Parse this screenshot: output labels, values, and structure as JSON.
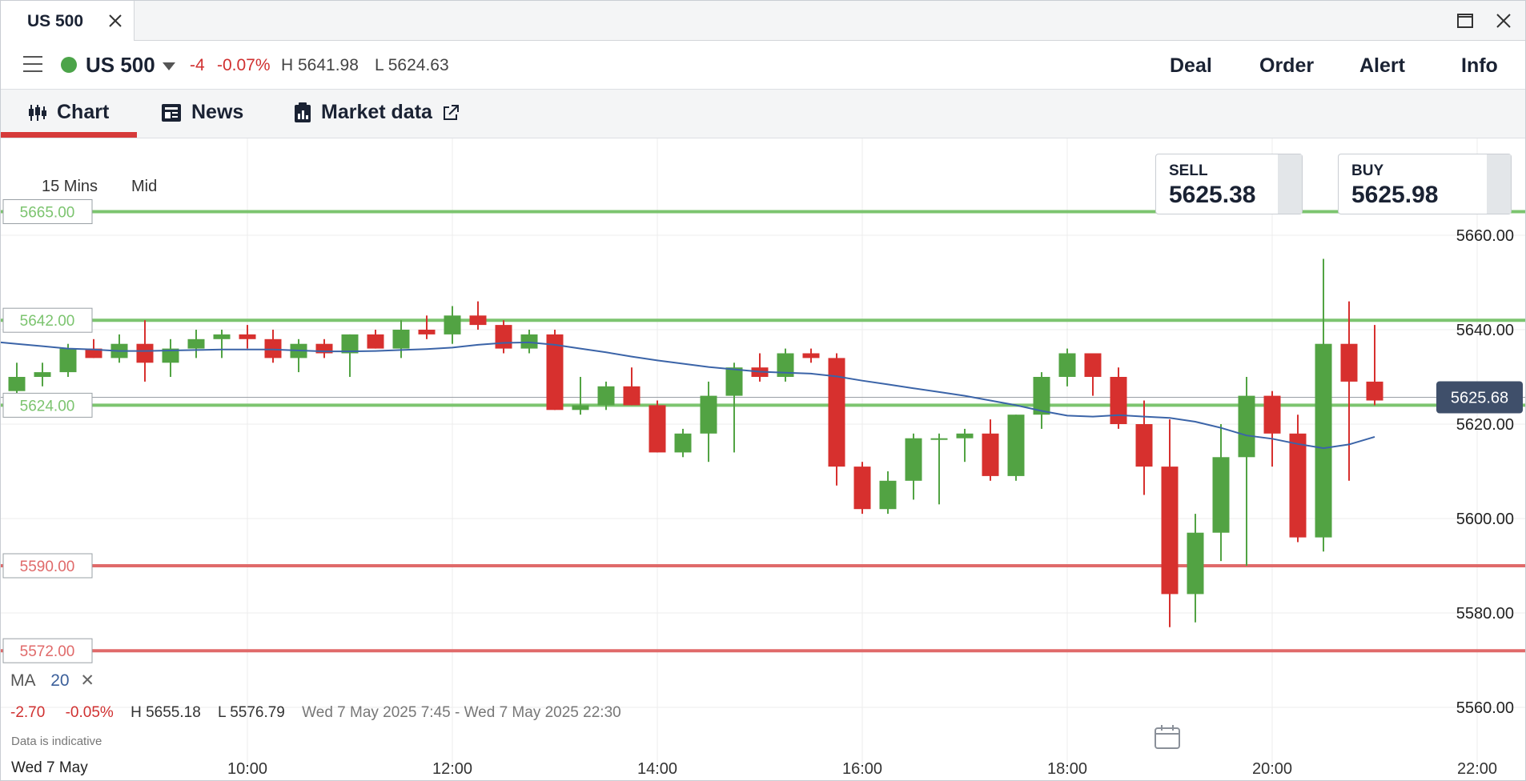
{
  "window": {
    "tab_title": "US 500"
  },
  "header": {
    "market_name": "US 500",
    "change": "-4",
    "change_pct": "-0.07%",
    "high": "H 5641.98",
    "low": "L 5624.63",
    "menu": [
      "Deal",
      "Order",
      "Alert",
      "Info"
    ]
  },
  "subtabs": {
    "chart": "Chart",
    "news": "News",
    "market_data": "Market data"
  },
  "controls": {
    "interval": "15 Mins",
    "price_type": "Mid"
  },
  "quotes": {
    "sell_label": "SELL",
    "sell_price": "5625.38",
    "buy_label": "BUY",
    "buy_price": "5625.98"
  },
  "current_price_label": "5625.68",
  "levels": [
    {
      "value": 5665,
      "label": "5665.00",
      "color": "#7cc46f"
    },
    {
      "value": 5642,
      "label": "5642.00",
      "color": "#7cc46f"
    },
    {
      "value": 5624,
      "label": "5624.00",
      "color": "#7cc46f"
    },
    {
      "value": 5590,
      "label": "5590.00",
      "color": "#e06a6a"
    },
    {
      "value": 5572,
      "label": "5572.00",
      "color": "#e06a6a"
    }
  ],
  "indicator": {
    "name": "MA",
    "period": "20"
  },
  "summary": {
    "change": "-2.70",
    "change_pct": "-0.05%",
    "high": "H 5655.18",
    "low": "L 5576.79",
    "range": "Wed 7 May 2025 7:45 - Wed 7 May 2025 22:30",
    "note": "Data is indicative",
    "date": "Wed 7 May"
  },
  "chart_data": {
    "type": "candlestick",
    "interval_minutes": 15,
    "x_start": "07:45",
    "y_ticks": [
      "5660.00",
      "5640.00",
      "5620.00",
      "5600.00",
      "5580.00",
      "5560.00"
    ],
    "x_ticks": [
      "10:00",
      "12:00",
      "14:00",
      "16:00",
      "18:00",
      "20:00",
      "22:00"
    ],
    "ylim": [
      5554,
      5674
    ],
    "series": [
      {
        "name": "US 500",
        "candles": [
          [
            "07:45",
            5627,
            5633,
            5625,
            5630
          ],
          [
            "08:00",
            5630,
            5633,
            5628,
            5631
          ],
          [
            "08:15",
            5631,
            5637,
            5630,
            5636
          ],
          [
            "08:30",
            5636,
            5638,
            5634,
            5634
          ],
          [
            "08:45",
            5634,
            5639,
            5633,
            5637
          ],
          [
            "09:00",
            5637,
            5642,
            5629,
            5633
          ],
          [
            "09:15",
            5633,
            5638,
            5630,
            5636
          ],
          [
            "09:30",
            5636,
            5640,
            5634,
            5638
          ],
          [
            "09:45",
            5638,
            5640,
            5634,
            5639
          ],
          [
            "10:00",
            5639,
            5641,
            5636,
            5638
          ],
          [
            "10:15",
            5638,
            5640,
            5633,
            5634
          ],
          [
            "10:30",
            5634,
            5638,
            5631,
            5637
          ],
          [
            "10:45",
            5637,
            5638,
            5634,
            5635
          ],
          [
            "11:00",
            5635,
            5639,
            5630,
            5639
          ],
          [
            "11:15",
            5639,
            5640,
            5636,
            5636
          ],
          [
            "11:30",
            5636,
            5642,
            5634,
            5640
          ],
          [
            "11:45",
            5640,
            5643,
            5638,
            5639
          ],
          [
            "12:00",
            5639,
            5645,
            5637,
            5643
          ],
          [
            "12:15",
            5643,
            5646,
            5640,
            5641
          ],
          [
            "12:30",
            5641,
            5642,
            5635,
            5636
          ],
          [
            "12:45",
            5636,
            5640,
            5635,
            5639
          ],
          [
            "13:00",
            5639,
            5640,
            5623,
            5623
          ],
          [
            "13:15",
            5623,
            5630,
            5622,
            5624
          ],
          [
            "13:30",
            5624,
            5629,
            5623,
            5628
          ],
          [
            "13:45",
            5628,
            5632,
            5624,
            5624
          ],
          [
            "14:00",
            5624,
            5625,
            5614,
            5614
          ],
          [
            "14:15",
            5614,
            5619,
            5613,
            5618
          ],
          [
            "14:30",
            5618,
            5629,
            5612,
            5626
          ],
          [
            "14:45",
            5626,
            5633,
            5614,
            5632
          ],
          [
            "15:00",
            5632,
            5635,
            5629,
            5630
          ],
          [
            "15:15",
            5630,
            5636,
            5629,
            5635
          ],
          [
            "15:30",
            5635,
            5636,
            5633,
            5634
          ],
          [
            "15:45",
            5634,
            5635,
            5607,
            5611
          ],
          [
            "16:00",
            5611,
            5612,
            5601,
            5602
          ],
          [
            "16:15",
            5602,
            5610,
            5601,
            5608
          ],
          [
            "16:30",
            5608,
            5618,
            5604,
            5617
          ],
          [
            "16:45",
            5617,
            5618,
            5603,
            5617
          ],
          [
            "17:00",
            5617,
            5619,
            5612,
            5618
          ],
          [
            "17:15",
            5618,
            5621,
            5608,
            5609
          ],
          [
            "17:30",
            5609,
            5622,
            5608,
            5622
          ],
          [
            "17:45",
            5622,
            5631,
            5619,
            5630
          ],
          [
            "18:00",
            5630,
            5636,
            5628,
            5635
          ],
          [
            "18:15",
            5635,
            5635,
            5626,
            5630
          ],
          [
            "18:30",
            5630,
            5632,
            5619,
            5620
          ],
          [
            "18:45",
            5620,
            5625,
            5605,
            5611
          ],
          [
            "19:00",
            5611,
            5621,
            5577,
            5584
          ],
          [
            "19:15",
            5584,
            5601,
            5578,
            5597
          ],
          [
            "19:30",
            5597,
            5620,
            5591,
            5613
          ],
          [
            "19:45",
            5613,
            5630,
            5590,
            5626
          ],
          [
            "20:00",
            5626,
            5627,
            5611,
            5618
          ],
          [
            "20:15",
            5618,
            5622,
            5595,
            5596
          ],
          [
            "20:30",
            5596,
            5655,
            5593,
            5637
          ],
          [
            "20:45",
            5637,
            5646,
            5608,
            5629
          ],
          [
            "21:00",
            5629,
            5641,
            5624,
            5625
          ]
        ]
      },
      {
        "name": "MA 20",
        "values": [
          5637,
          5636.5,
          5636,
          5635.8,
          5635.5,
          5635.5,
          5635.6,
          5635.7,
          5635.8,
          5635.8,
          5635.8,
          5635.6,
          5635.4,
          5635.4,
          5635.5,
          5635.7,
          5635.9,
          5636.2,
          5636.8,
          5637.2,
          5637.3,
          5636.8,
          5636,
          5635.2,
          5634.3,
          5633.5,
          5632.8,
          5632.1,
          5631.6,
          5631.1,
          5630.9,
          5630.7,
          5630.1,
          5629.2,
          5628.4,
          5627.6,
          5626.8,
          5626,
          5625,
          5624,
          5622.8,
          5621.8,
          5621.6,
          5621.9,
          5621.6,
          5621.3,
          5620.5,
          5619.2,
          5617.6,
          5616.9,
          5615.8,
          5614.9,
          5615.7,
          5617.3
        ]
      }
    ]
  }
}
